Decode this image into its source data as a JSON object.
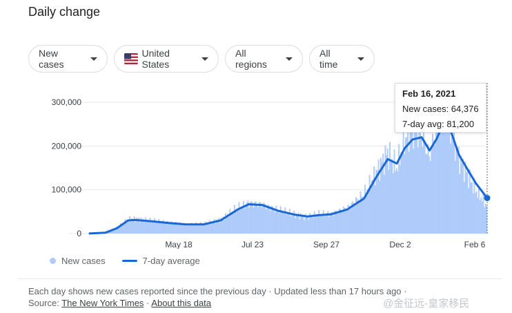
{
  "title": "Daily change",
  "filters": [
    {
      "label": "New cases"
    },
    {
      "label": "United States",
      "icon": "us-flag-icon"
    },
    {
      "label": "All regions"
    },
    {
      "label": "All time"
    }
  ],
  "tooltip": {
    "date": "Feb 16, 2021",
    "new_cases_line": "New cases: 64,376",
    "avg_line": "7-day avg: 81,200"
  },
  "legend": {
    "new_cases": "New cases",
    "avg": "7-day average"
  },
  "footer": {
    "note": "Each day shows new cases reported since the previous day  ·  Updated less than 17 hours ago  ·",
    "source_prefix": "Source:",
    "source_link": "The New York Times",
    "separator": "·",
    "about_link": "About this data"
  },
  "watermark": "@金征远-皇家移民",
  "colors": {
    "bars": "#aecbfa",
    "line": "#1967d2",
    "grid": "#e8eaed"
  },
  "chart_data": {
    "type": "bar",
    "x_start": "2020-03-01",
    "x_end": "2021-02-16",
    "x_ticks": [
      "May 18",
      "Jul 23",
      "Sep 27",
      "Dec 2",
      "Feb 6"
    ],
    "y_ticks": [
      "0",
      "100,000",
      "200,000",
      "300,000"
    ],
    "ylim": [
      0,
      300000
    ],
    "series": [
      {
        "name": "7-day average",
        "kind": "line",
        "points": [
          [
            "2020-03-01",
            200
          ],
          [
            "2020-03-15",
            2000
          ],
          [
            "2020-03-25",
            12000
          ],
          [
            "2020-04-04",
            30000
          ],
          [
            "2020-04-10",
            31000
          ],
          [
            "2020-04-25",
            28000
          ],
          [
            "2020-05-10",
            24000
          ],
          [
            "2020-05-25",
            21000
          ],
          [
            "2020-06-10",
            21000
          ],
          [
            "2020-06-25",
            30000
          ],
          [
            "2020-07-10",
            55000
          ],
          [
            "2020-07-20",
            67000
          ],
          [
            "2020-08-01",
            65000
          ],
          [
            "2020-08-15",
            52000
          ],
          [
            "2020-08-30",
            43000
          ],
          [
            "2020-09-10",
            39000
          ],
          [
            "2020-09-20",
            42000
          ],
          [
            "2020-10-01",
            44000
          ],
          [
            "2020-10-15",
            55000
          ],
          [
            "2020-10-30",
            80000
          ],
          [
            "2020-11-10",
            130000
          ],
          [
            "2020-11-20",
            170000
          ],
          [
            "2020-11-28",
            160000
          ],
          [
            "2020-12-05",
            195000
          ],
          [
            "2020-12-12",
            215000
          ],
          [
            "2020-12-20",
            220000
          ],
          [
            "2020-12-27",
            190000
          ],
          [
            "2021-01-02",
            215000
          ],
          [
            "2021-01-08",
            250000
          ],
          [
            "2021-01-14",
            240000
          ],
          [
            "2021-01-22",
            180000
          ],
          [
            "2021-01-30",
            145000
          ],
          [
            "2021-02-06",
            115000
          ],
          [
            "2021-02-16",
            81200
          ]
        ]
      },
      {
        "name": "New cases",
        "kind": "bar",
        "points": [
          [
            "2020-03-01",
            200
          ],
          [
            "2020-03-15",
            2500
          ],
          [
            "2020-03-25",
            14000
          ],
          [
            "2020-04-04",
            33000
          ],
          [
            "2020-04-10",
            34000
          ],
          [
            "2020-04-25",
            30000
          ],
          [
            "2020-05-10",
            26000
          ],
          [
            "2020-05-25",
            22000
          ],
          [
            "2020-06-10",
            22000
          ],
          [
            "2020-06-25",
            33000
          ],
          [
            "2020-07-10",
            60000
          ],
          [
            "2020-07-20",
            70000
          ],
          [
            "2020-08-01",
            66000
          ],
          [
            "2020-08-15",
            54000
          ],
          [
            "2020-08-30",
            44000
          ],
          [
            "2020-09-10",
            38000
          ],
          [
            "2020-09-20",
            45000
          ],
          [
            "2020-10-01",
            46000
          ],
          [
            "2020-10-15",
            58000
          ],
          [
            "2020-10-30",
            90000
          ],
          [
            "2020-11-10",
            140000
          ],
          [
            "2020-11-20",
            185000
          ],
          [
            "2020-11-28",
            150000
          ],
          [
            "2020-12-05",
            215000
          ],
          [
            "2020-12-12",
            235000
          ],
          [
            "2020-12-20",
            230000
          ],
          [
            "2020-12-27",
            175000
          ],
          [
            "2021-01-02",
            240000
          ],
          [
            "2021-01-08",
            290000
          ],
          [
            "2021-01-14",
            240000
          ],
          [
            "2021-01-22",
            175000
          ],
          [
            "2021-01-30",
            135000
          ],
          [
            "2021-02-06",
            100000
          ],
          [
            "2021-02-16",
            64376
          ]
        ]
      }
    ],
    "highlight_date": "2021-02-16",
    "grid": true,
    "legend_position": "bottom-left"
  }
}
